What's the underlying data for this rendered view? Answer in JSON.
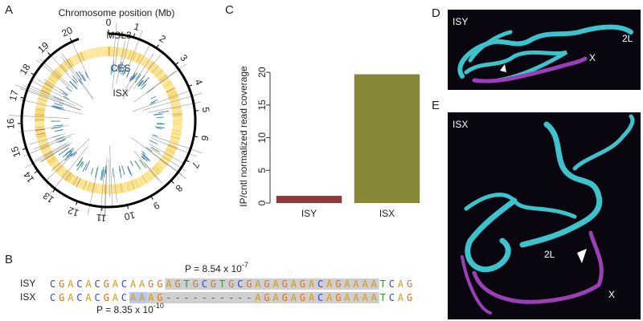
{
  "panel_labels": [
    "A",
    "B",
    "C",
    "D",
    "E"
  ],
  "circos": {
    "title": "Chromosome position (Mb)",
    "ticks": [
      0,
      1,
      2,
      3,
      4,
      5,
      6,
      7,
      8,
      9,
      10,
      11,
      12,
      13,
      14,
      15,
      16,
      17,
      18,
      19,
      20
    ],
    "xlim": [
      0,
      20.3
    ],
    "track_labels": [
      "MSL3",
      "CES",
      "ISX"
    ]
  },
  "alignment": {
    "p_top": {
      "text": "P = 8.54 x 10",
      "exponent": "-7"
    },
    "p_bottom": {
      "text": "P = 8.35 x 10",
      "exponent": "-10"
    },
    "rows": [
      {
        "name": "ISY",
        "sequence": "CGACACGACAAGGAGTGCGTGCGAGAGAGACAGAAAATCAG"
      },
      {
        "name": "ISX",
        "sequence": "CGACACGACAAAG----------AGAGAGACAGAAAATCAG"
      }
    ]
  },
  "chart_data": {
    "type": "bar",
    "y_label": "IP/cntl normalized read coverage",
    "categories": [
      "ISY",
      "ISX"
    ],
    "values": [
      1.1,
      19.7
    ],
    "colors": [
      "#8b3c3a",
      "#878735"
    ],
    "ylim": [
      0,
      21
    ],
    "yticks": [
      0,
      5,
      10,
      15,
      20
    ]
  },
  "micrographs": [
    {
      "label": "ISY",
      "annotations": [
        "2L",
        "X"
      ]
    },
    {
      "label": "ISX",
      "annotations": [
        "2L",
        "X"
      ]
    }
  ]
}
